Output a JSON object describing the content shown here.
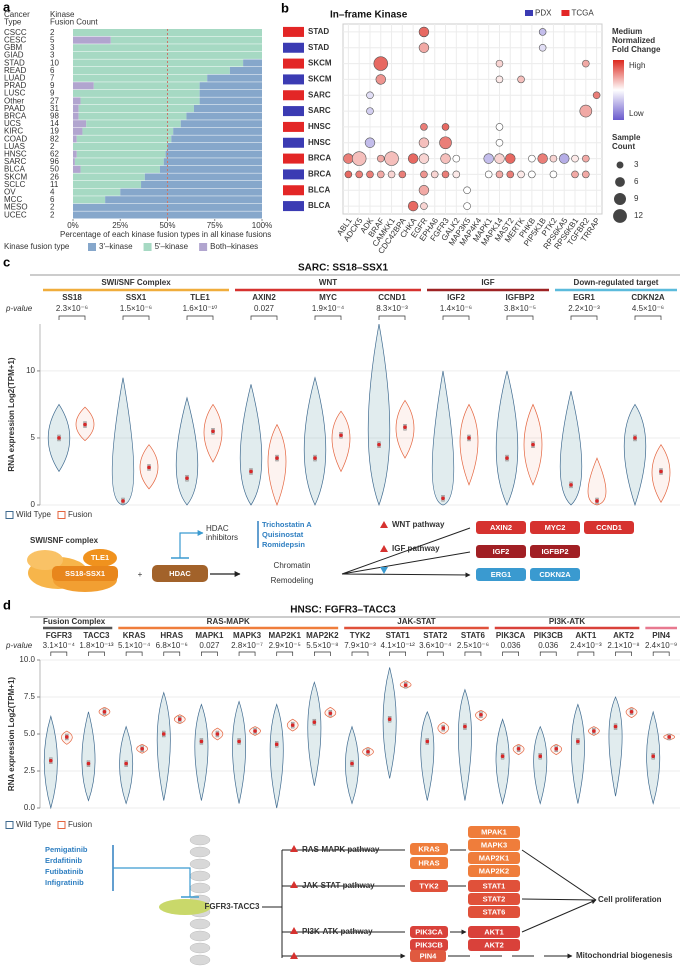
{
  "panel_labels": [
    "a",
    "b",
    "c",
    "d"
  ],
  "chart_data": [
    {
      "type": "bar",
      "orientation": "horizontal",
      "stacked": true,
      "category_header": [
        "Cancer",
        "Type"
      ],
      "count_header": [
        "Kinase",
        "Fusion Count"
      ],
      "categories": [
        "CSCC",
        "CESC",
        "GBM",
        "GIAD",
        "STAD",
        "READ",
        "LUAD",
        "PRAD",
        "LUSC",
        "Other",
        "PAAD",
        "BRCA",
        "UCS",
        "KIRC",
        "COAD",
        "LUAS",
        "HNSC",
        "SARC",
        "BLCA",
        "SKCM",
        "SCLC",
        "OV",
        "MCC",
        "MESO",
        "UCEC"
      ],
      "counts": [
        2,
        5,
        3,
        3,
        10,
        6,
        7,
        9,
        9,
        27,
        31,
        98,
        14,
        19,
        82,
        2,
        62,
        96,
        50,
        26,
        11,
        4,
        6,
        2,
        2
      ],
      "series": [
        {
          "name": "Both–kinases",
          "color": "#b1a5cf",
          "values": [
            0,
            20,
            0,
            0,
            0,
            0,
            0,
            11,
            0,
            4,
            3,
            3,
            7,
            5,
            2,
            0,
            2,
            1,
            4,
            0,
            0,
            0,
            0,
            0,
            0
          ]
        },
        {
          "name": "5'–kinase",
          "color": "#a6d9c3",
          "values": [
            100,
            80,
            100,
            100,
            90,
            83,
            71,
            56,
            67,
            63,
            61,
            57,
            50,
            48,
            50,
            50,
            47,
            47,
            42,
            38,
            36,
            25,
            17,
            0,
            0
          ]
        },
        {
          "name": "3'–kinase",
          "color": "#86a7cb",
          "values": [
            0,
            0,
            0,
            0,
            10,
            17,
            29,
            33,
            33,
            33,
            36,
            40,
            43,
            47,
            48,
            50,
            51,
            52,
            54,
            62,
            64,
            75,
            83,
            100,
            100
          ]
        }
      ],
      "xlim": [
        0,
        100
      ],
      "xticks": [
        {
          "value": 0,
          "label": "0%"
        },
        {
          "value": 25,
          "label": "25%"
        },
        {
          "value": 50,
          "label": "50%"
        },
        {
          "value": 75,
          "label": "75%"
        },
        {
          "value": 100,
          "label": "100%"
        }
      ],
      "reference_line": 50,
      "x_label": "Percentage of each kinase fusion types in all kinase fusions",
      "legend_title": "Kinase fusion type"
    },
    {
      "type": "dot",
      "title": "In–frame Kinase",
      "legend": [
        {
          "name": "PDX",
          "color": "#3b3bb3"
        },
        {
          "name": "TCGA",
          "color": "#e32626"
        }
      ],
      "kinases": [
        "ABL1",
        "ADCK5",
        "ADK",
        "BRAF",
        "CAMKK1",
        "CDC42BPA",
        "CHKA",
        "EGFR",
        "EPHA6",
        "FGFR3",
        "GALK2",
        "MAP3K5",
        "MAP4K4",
        "MAPK1",
        "MAPK14",
        "MAST2",
        "MERTK",
        "PHKB",
        "PIP5K1B",
        "PTK2",
        "RPS6KA5",
        "RPS6KB1",
        "TGFBR2",
        "TRRAP"
      ],
      "rows": [
        {
          "label": "STAD",
          "color": "#e32626",
          "kinases": [
            "EGFR",
            "PIP5K1B"
          ],
          "sizes": [
            6,
            3
          ],
          "fold_change": [
            0.85,
            0.3
          ]
        },
        {
          "label": "STAD",
          "color": "#3b3bb3",
          "kinases": [
            "EGFR",
            "PIP5K1B"
          ],
          "sizes": [
            6,
            3
          ],
          "fold_change": [
            0.7,
            0.4
          ]
        },
        {
          "label": "SKCM",
          "color": "#e32626",
          "kinases": [
            "BRAF",
            "MAPK14",
            "TGFBR2"
          ],
          "sizes": [
            12,
            3,
            3
          ],
          "fold_change": [
            0.85,
            0.6,
            0.7
          ]
        },
        {
          "label": "SKCM",
          "color": "#3b3bb3",
          "kinases": [
            "BRAF",
            "MAPK14",
            "MERTK"
          ],
          "sizes": [
            6,
            3,
            3
          ],
          "fold_change": [
            0.75,
            0.55,
            0.65
          ]
        },
        {
          "label": "SARC",
          "color": "#e32626",
          "kinases": [
            "ADK",
            "TRRAP"
          ],
          "sizes": [
            3,
            3
          ],
          "fold_change": [
            0.4,
            0.8
          ]
        },
        {
          "label": "SARC",
          "color": "#3b3bb3",
          "kinases": [
            "ADK",
            "TGFBR2"
          ],
          "sizes": [
            3,
            9
          ],
          "fold_change": [
            0.35,
            0.7
          ]
        },
        {
          "label": "HNSC",
          "color": "#e32626",
          "kinases": [
            "EGFR",
            "FGFR3",
            "MAPK14"
          ],
          "sizes": [
            3,
            3,
            3
          ],
          "fold_change": [
            0.8,
            0.85,
            0.5
          ]
        },
        {
          "label": "HNSC",
          "color": "#3b3bb3",
          "kinases": [
            "ADK",
            "EGFR",
            "FGFR3",
            "MAPK14"
          ],
          "sizes": [
            6,
            6,
            9,
            3
          ],
          "fold_change": [
            0.3,
            0.65,
            0.8,
            0.5
          ]
        },
        {
          "label": "BRCA",
          "color": "#e32626",
          "kinases": [
            "ABL1",
            "ADCK5",
            "BRAF",
            "CAMKK1",
            "CHKA",
            "EGFR",
            "FGFR3",
            "GALK2",
            "MAPK1",
            "MAPK14",
            "MAST2",
            "PHKB",
            "PIP5K1B",
            "PTK2",
            "RPS6KA5",
            "RPS6KB1",
            "TGFBR2"
          ],
          "sizes": [
            6,
            12,
            3,
            12,
            6,
            6,
            6,
            3,
            6,
            6,
            6,
            3,
            6,
            3,
            6,
            3,
            3
          ],
          "fold_change": [
            0.8,
            0.65,
            0.7,
            0.65,
            0.85,
            0.6,
            0.65,
            0.5,
            0.3,
            0.6,
            0.85,
            0.5,
            0.8,
            0.6,
            0.25,
            0.55,
            0.7
          ]
        },
        {
          "label": "BRCA",
          "color": "#3b3bb3",
          "kinases": [
            "ABL1",
            "ADCK5",
            "ADK",
            "BRAF",
            "CAMKK1",
            "CDC42BPA",
            "EGFR",
            "EPHA6",
            "FGFR3",
            "GALK2",
            "MAPK1",
            "MAPK14",
            "MAST2",
            "MERTK",
            "PHKB",
            "PTK2",
            "RPS6KB1",
            "TGFBR2"
          ],
          "sizes": [
            3,
            3,
            3,
            3,
            3,
            3,
            3,
            3,
            3,
            3,
            3,
            3,
            3,
            3,
            3,
            3,
            3,
            3
          ],
          "fold_change": [
            0.85,
            0.8,
            0.8,
            0.7,
            0.6,
            0.8,
            0.75,
            0.6,
            0.8,
            0.55,
            0.5,
            0.7,
            0.8,
            0.55,
            0.5,
            0.5,
            0.7,
            0.7
          ]
        },
        {
          "label": "BLCA",
          "color": "#e32626",
          "kinases": [
            "EGFR",
            "MAP3K5"
          ],
          "sizes": [
            6,
            3
          ],
          "fold_change": [
            0.7,
            0.5
          ]
        },
        {
          "label": "BLCA",
          "color": "#3b3bb3",
          "kinases": [
            "CHKA",
            "EGFR",
            "MAP3K5"
          ],
          "sizes": [
            6,
            3,
            3
          ],
          "fold_change": [
            0.85,
            0.6,
            0.5
          ]
        }
      ],
      "clim": [
        0,
        1
      ],
      "color_legend_title": [
        "Medium",
        "Normalized",
        "Fold Change"
      ],
      "color_high": "High",
      "color_low": "Low",
      "size_legend_title": [
        "Sample",
        "Count"
      ],
      "size_legend": [
        3,
        6,
        9,
        12
      ]
    },
    {
      "type": "violin",
      "title": "SARC: SS18–SSX1",
      "p_label": "p-value",
      "y_label": "RNA expression Log2(TPM+1)",
      "groups": [
        {
          "name": "SWI/SNF Complex",
          "color": "#f0ad3c",
          "genes": [
            "SS18",
            "SSX1",
            "TLE1"
          ],
          "p_values": [
            "2.3×10⁻⁶",
            "1.5×10⁻⁶",
            "1.6×10⁻¹⁰"
          ]
        },
        {
          "name": "WNT",
          "color": "#d6322f",
          "genes": [
            "AXIN2",
            "MYC",
            "CCND1"
          ],
          "p_values": [
            "0.027",
            "1.9×10⁻⁴",
            "8.3×10⁻³"
          ]
        },
        {
          "name": "IGF",
          "color": "#9e2224",
          "genes": [
            "IGF2",
            "IGFBP2"
          ],
          "p_values": [
            "1.4×10⁻⁶",
            "3.8×10⁻⁵"
          ]
        },
        {
          "name": "Down-regulated target",
          "color": "#5bbbdc",
          "genes": [
            "EGR1",
            "CDKN2A"
          ],
          "p_values": [
            "2.2×10⁻³",
            "4.5×10⁻⁶"
          ]
        }
      ],
      "series": [
        {
          "name": "Wild Type",
          "color": "#3f6a8f",
          "low": [
            2.5,
            0,
            0,
            0,
            0,
            0,
            0,
            0,
            0,
            0
          ],
          "median": [
            5.0,
            0.3,
            2.0,
            2.5,
            3.5,
            4.5,
            0.5,
            3.5,
            1.5,
            5.0
          ],
          "high": [
            7.5,
            9.5,
            8,
            9,
            9.5,
            13.5,
            10,
            10,
            8.5,
            7.5
          ]
        },
        {
          "name": "Fusion",
          "color": "#e4653f",
          "low": [
            4.8,
            1.2,
            3.2,
            0,
            2.5,
            3.5,
            1.5,
            1.5,
            0,
            0.2
          ],
          "median": [
            6.0,
            2.8,
            5.5,
            3.5,
            5.2,
            5.8,
            5.0,
            4.5,
            0.3,
            2.5
          ],
          "high": [
            7.3,
            4.5,
            7.5,
            6.0,
            7.0,
            7.8,
            7.5,
            7.5,
            3.5,
            4.5
          ]
        }
      ],
      "ylim": [
        0,
        13.5
      ],
      "yticks": [
        0,
        5,
        10
      ]
    },
    {
      "type": "violin",
      "title": "HNSC: FGFR3–TACC3",
      "p_label": "p-value",
      "y_label": "RNA expression Log2(TPM+1)",
      "groups": [
        {
          "name": "Fusion Complex",
          "color": "#555555",
          "genes": [
            "FGFR3",
            "TACC3"
          ],
          "p_values": [
            "3.1×10⁻⁴",
            "1.8×10⁻¹³"
          ]
        },
        {
          "name": "RAS-MAPK",
          "color": "#ef7d3b",
          "genes": [
            "KRAS",
            "HRAS",
            "MAPK1",
            "MAPK3",
            "MAP2K1",
            "MAP2K2"
          ],
          "p_values": [
            "5.1×10⁻⁴",
            "6.8×10⁻⁶",
            "0.027",
            "2.8×10⁻⁷",
            "2.9×10⁻⁵",
            "5.5×10⁻⁸"
          ]
        },
        {
          "name": "JAK-STAT",
          "color": "#e0513a",
          "genes": [
            "TYK2",
            "STAT1",
            "STAT2",
            "STAT6"
          ],
          "p_values": [
            "7.9×10⁻³",
            "4.1×10⁻¹²",
            "3.6×10⁻⁴",
            "2.5×10⁻⁶"
          ]
        },
        {
          "name": "PI3K-ATK",
          "color": "#d9413a",
          "genes": [
            "PIK3CA",
            "PIK3CB",
            "AKT1",
            "AKT2"
          ],
          "p_values": [
            "0.036",
            "0.036",
            "2.4×10⁻³",
            "2.1×10⁻⁸"
          ]
        },
        {
          "color": "#e8798f",
          "genes": [
            "PIN4"
          ],
          "p_values": [
            "2.4×10⁻⁹"
          ]
        }
      ],
      "series": [
        {
          "name": "Wild Type",
          "color": "#3f6a8f",
          "low": [
            0,
            0.5,
            0.3,
            0.5,
            0.5,
            0.3,
            0,
            1.5,
            0.3,
            2,
            0.5,
            0.5,
            0.3,
            0.3,
            0.3,
            0.8,
            0.3
          ],
          "median": [
            3.2,
            3.0,
            3.0,
            5.0,
            4.5,
            4.5,
            4.3,
            5.8,
            3.0,
            6.0,
            4.5,
            5.5,
            3.5,
            3.5,
            4.5,
            5.5,
            3.5
          ],
          "high": [
            6.2,
            6.5,
            5.5,
            7.8,
            7.0,
            7.2,
            7.0,
            8.5,
            5.5,
            9.5,
            6.5,
            8.0,
            6.0,
            5.5,
            7.0,
            7.5,
            6.5
          ]
        },
        {
          "name": "Fusion",
          "color": "#e4653f",
          "low": [
            4.3,
            6.2,
            3.7,
            5.7,
            4.6,
            4.9,
            5.2,
            6.1,
            3.5,
            8.1,
            5.0,
            5.9,
            3.6,
            3.6,
            4.9,
            6.1,
            4.6
          ],
          "median": [
            4.8,
            6.5,
            4.0,
            6.0,
            5.0,
            5.2,
            5.6,
            6.4,
            3.8,
            8.3,
            5.4,
            6.3,
            4.0,
            4.0,
            5.2,
            6.5,
            4.8
          ],
          "high": [
            5.2,
            6.8,
            4.3,
            6.3,
            5.4,
            5.5,
            6.0,
            6.8,
            4.1,
            8.6,
            5.8,
            6.6,
            4.3,
            4.3,
            5.5,
            6.8,
            5.0
          ]
        }
      ],
      "ylim": [
        0,
        10
      ],
      "yticks": [
        {
          "value": 0,
          "label": "0.0"
        },
        {
          "value": 2.5,
          "label": "2.5"
        },
        {
          "value": 5,
          "label": "5.0"
        },
        {
          "value": 7.5,
          "label": "7.5"
        },
        {
          "value": 10,
          "label": "10.0"
        }
      ]
    }
  ],
  "diagram_c": {
    "complex_label": "SWI/SNF complex",
    "tle1": "TLE1",
    "fusion": "SS18-SSX1",
    "plus": "+",
    "hdac": "HDAC",
    "inhibitors_label": [
      "HDAC",
      "inhibitors"
    ],
    "inhibitors": [
      "Trichostatin A",
      "Quisinostat",
      "Romidepsin"
    ],
    "outcome": [
      "Chromatin",
      "Remodeling"
    ],
    "pathways": [
      {
        "name": "WNT pathway",
        "genes": [
          "AXIN2",
          "MYC2",
          "CCND1"
        ]
      },
      {
        "name": "IGF pathway",
        "genes": [
          "IGF2",
          "IGFBP2"
        ]
      },
      {
        "genes": [
          "ERG1",
          "CDKN2A"
        ]
      }
    ]
  },
  "diagram_d": {
    "inhibitors": [
      "Pemigatinib",
      "Erdafitinib",
      "Futibatinib",
      "Infigratinib"
    ],
    "fusion": "FGFR3-TACC3",
    "pathways": [
      {
        "name": "RAS-MAPK pathway",
        "upstream": [
          "KRAS",
          "HRAS"
        ],
        "downstream": [
          "MPAK1",
          "MAPK3",
          "MAP2K1",
          "MAP2K2"
        ]
      },
      {
        "name": "JAK-STAT pathway",
        "upstream": [
          "TYK2"
        ],
        "downstream": [
          "STAT1",
          "STAT2",
          "STAT6"
        ]
      },
      {
        "name": "PI3K-ATK pathway",
        "upstream": [
          "PIK3CA",
          "PIK3CB"
        ],
        "downstream": [
          "AKT1",
          "AKT2"
        ]
      },
      {
        "upstream": [
          "PIN4"
        ]
      }
    ],
    "outcomes": [
      "Cell proliferation",
      "Mitochondrial biogenesis"
    ]
  }
}
